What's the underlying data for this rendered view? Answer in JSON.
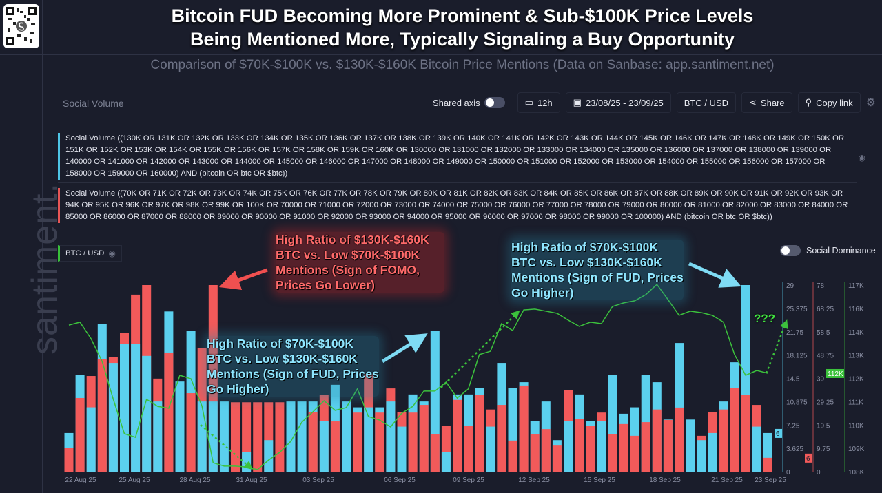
{
  "header": {
    "title_line1": "Bitcoin FUD Becoming More Prominent & Sub-$100K Price Levels",
    "title_line2": "Being Mentioned More, Typically Signaling a Buy Opportunity",
    "subtitle": "Comparison of $70K-$100K vs. $130K-$160K Bitcoin Price Mentions (Data on Sanbase: app.santiment.net)"
  },
  "brand": {
    "watermark": "santiment."
  },
  "panel": {
    "label": "Social Volume"
  },
  "toolbar": {
    "shared_axis": "Shared axis",
    "interval": "12h",
    "date_range": "23/08/25 - 23/09/25",
    "pair": "BTC / USD",
    "share": "Share",
    "copy_link": "Copy link"
  },
  "legend": {
    "blue": "Social Volume ((130K OR 131K OR 132K OR 133K OR 134K OR 135K OR 136K OR 137K OR 138K OR 139K OR 140K OR 141K OR 142K OR 143K OR 144K OR 145K OR 146K OR 147K OR 148K OR 149K OR 150K OR 151K OR 152K OR 153K OR 154K OR 155K OR 156K OR 157K OR 158K OR 159K OR 160K OR 130000 OR 131000 OR 132000 OR 133000 OR 134000 OR 135000 OR 136000 OR 137000 OR 138000 OR 139000 OR 140000 OR 141000 OR 142000 OR 143000 OR 144000 OR 145000 OR 146000 OR 147000 OR 148000 OR 149000 OR 150000 OR 151000 OR 152000 OR 153000 OR 154000 OR 155000 OR 156000 OR 157000 OR 158000 OR 159000 OR 160000) AND (bitcoin OR btc OR $btc))",
    "red": "Social Volume ((70K OR 71K OR 72K OR 73K OR 74K OR 75K OR 76K OR 77K OR 78K OR 79K OR 80K OR 81K OR 82K OR 83K OR 84K OR 85K OR 86K OR 87K OR 88K OR 89K OR 90K OR 91K OR 92K OR 93K OR 94K OR 95K OR 96K OR 97K OR 98K OR 99K OR 100K OR 70000 OR 71000 OR 72000 OR 73000 OR 74000 OR 75000 OR 76000 OR 77000 OR 78000 OR 79000 OR 80000 OR 81000 OR 82000 OR 83000 OR 84000 OR 85000 OR 86000 OR 87000 OR 88000 OR 89000 OR 90000 OR 91000 OR 92000 OR 93000 OR 94000 OR 95000 OR 96000 OR 97000 OR 98000 OR 99000 OR 100000) AND (bitcoin OR btc OR $btc))",
    "green": "BTC / USD",
    "social_dominance": "Social Dominance"
  },
  "annotations": {
    "red_note": "High Ratio of $130K-$160K BTC vs. Low $70K-$100K Mentions (Sign of FOMO, Prices Go Lower)",
    "blue_note_1": "High Ratio of $70K-$100K BTC vs. Low $130K-$160K Mentions (Sign of FUD, Prices Go Higher)",
    "blue_note_2": "High Ratio of $70K-$100K BTC vs. Low $130K-$160K Mentions (Sign of FUD, Prices Go Higher)",
    "question": "???"
  },
  "colors": {
    "blue": "#5bd0ee",
    "red": "#f25a5a",
    "green": "#3cc23c",
    "background": "#1a1d2b"
  },
  "chart_data": {
    "type": "bar",
    "interval": "12h",
    "x_tick_labels": [
      "22 Aug 25",
      "25 Aug 25",
      "28 Aug 25",
      "31 Aug 25",
      "03 Sep 25",
      "06 Sep 25",
      "09 Sep 25",
      "12 Sep 25",
      "15 Sep 25",
      "18 Sep 25",
      "21 Sep 25",
      "23 Sep 25"
    ],
    "x": [
      "21 Aug 12h",
      "22 Aug 00h",
      "22 Aug 12h",
      "23 Aug 00h",
      "23 Aug 12h",
      "24 Aug 00h",
      "24 Aug 12h",
      "25 Aug 00h",
      "25 Aug 12h",
      "26 Aug 00h",
      "26 Aug 12h",
      "27 Aug 00h",
      "27 Aug 12h",
      "28 Aug 00h",
      "28 Aug 12h",
      "29 Aug 00h",
      "29 Aug 12h",
      "30 Aug 00h",
      "30 Aug 12h",
      "31 Aug 00h",
      "31 Aug 12h",
      "01 Sep 00h",
      "01 Sep 12h",
      "02 Sep 00h",
      "02 Sep 12h",
      "03 Sep 00h",
      "03 Sep 12h",
      "04 Sep 00h",
      "04 Sep 12h",
      "05 Sep 00h",
      "05 Sep 12h",
      "06 Sep 00h",
      "06 Sep 12h",
      "07 Sep 00h",
      "07 Sep 12h",
      "08 Sep 00h",
      "08 Sep 12h",
      "09 Sep 00h",
      "09 Sep 12h",
      "10 Sep 00h",
      "10 Sep 12h",
      "11 Sep 00h",
      "11 Sep 12h",
      "12 Sep 00h",
      "12 Sep 12h",
      "13 Sep 00h",
      "13 Sep 12h",
      "14 Sep 00h",
      "14 Sep 12h",
      "15 Sep 00h",
      "15 Sep 12h",
      "16 Sep 00h",
      "16 Sep 12h",
      "17 Sep 00h",
      "17 Sep 12h",
      "18 Sep 00h",
      "18 Sep 12h",
      "19 Sep 00h",
      "19 Sep 12h",
      "20 Sep 00h",
      "20 Sep 12h",
      "21 Sep 00h",
      "21 Sep 12h",
      "22 Sep 00h"
    ],
    "series": [
      {
        "key": "blue",
        "axis": "left",
        "ylim": [
          0,
          29
        ],
        "ticks": [
          "29",
          "25.375",
          "21.75",
          "18.125",
          "14.5",
          "10.875",
          "7.25",
          "3.625",
          "0"
        ],
        "last_value_label": "6",
        "values": [
          6,
          15,
          10,
          23,
          16.9,
          19.9,
          19.9,
          18,
          10.9,
          24.9,
          14,
          21.9,
          10.9,
          10.9,
          10.9,
          0,
          3,
          0,
          4.9,
          0,
          10.9,
          10.9,
          10.9,
          7.9,
          13.5,
          10.9,
          10,
          10,
          10,
          10.9,
          7,
          12,
          10.9,
          21.9,
          3,
          12,
          12,
          13,
          7,
          16.9,
          13,
          13.9,
          7.9,
          10.9,
          4.9,
          7.9,
          12,
          7.9,
          7.9,
          15,
          9,
          10,
          15,
          13.9,
          8.1,
          20,
          8.1,
          4.9,
          6,
          10.9,
          17,
          29,
          7,
          6
        ]
      },
      {
        "key": "red",
        "axis": "middle",
        "ylim": [
          0,
          78
        ],
        "ticks": [
          "78",
          "68.25",
          "58.5",
          "48.75",
          "39",
          "29.25",
          "19.5",
          "9.75",
          "0"
        ],
        "last_value_label": "6",
        "values": [
          9.8,
          30.8,
          40,
          47,
          48,
          58,
          74,
          78,
          38.9,
          49.8,
          0,
          32.8,
          51.8,
          78,
          0,
          29,
          29,
          29,
          29,
          29,
          0,
          0,
          25,
          32,
          21,
          0,
          24.7,
          40.9,
          24.7,
          34.8,
          25,
          24.7,
          27.9,
          15.8,
          19,
          30,
          19,
          32,
          26,
          27.9,
          13,
          36,
          15.8,
          17.8,
          10.9,
          34,
          21.9,
          19,
          24.7,
          15.8,
          19.9,
          15,
          20.7,
          26,
          21.6,
          26.8,
          0,
          15,
          25,
          26,
          35,
          32.2,
          27.9,
          5.8
        ]
      },
      {
        "key": "green",
        "name": "BTC / USD",
        "type": "line",
        "axis": "right",
        "ylim": [
          108000,
          117000
        ],
        "ticks": [
          "117K",
          "116K",
          "114K",
          "113K",
          "112K",
          "111K",
          "110K",
          "109K",
          "108K"
        ],
        "last_value_label": "112K",
        "values": [
          115.07,
          115.21,
          114.41,
          113.31,
          111.49,
          109.83,
          109.66,
          111.49,
          111.15,
          111.06,
          112.65,
          112.48,
          111.15,
          108.43,
          108.27,
          108.27,
          108.23,
          108.1,
          108.56,
          108.93,
          109.46,
          110.39,
          110.89,
          111.42,
          110.96,
          111.09,
          111.99,
          110.66,
          110.49,
          110.16,
          110.82,
          111.15,
          111.89,
          111.89,
          112.32,
          111.55,
          111.99,
          113.65,
          113.81,
          115.14,
          114.81,
          115.8,
          115.84,
          115.74,
          115.64,
          115.31,
          115.01,
          115.21,
          115.14,
          115.97,
          116.14,
          116.24,
          116.54,
          117.03,
          116.3,
          115.54,
          115.74,
          115.67,
          115.54,
          115.21,
          113.65,
          112.65,
          112.88,
          112.75
        ],
        "unit": "thousand USD"
      }
    ],
    "grid": false
  }
}
